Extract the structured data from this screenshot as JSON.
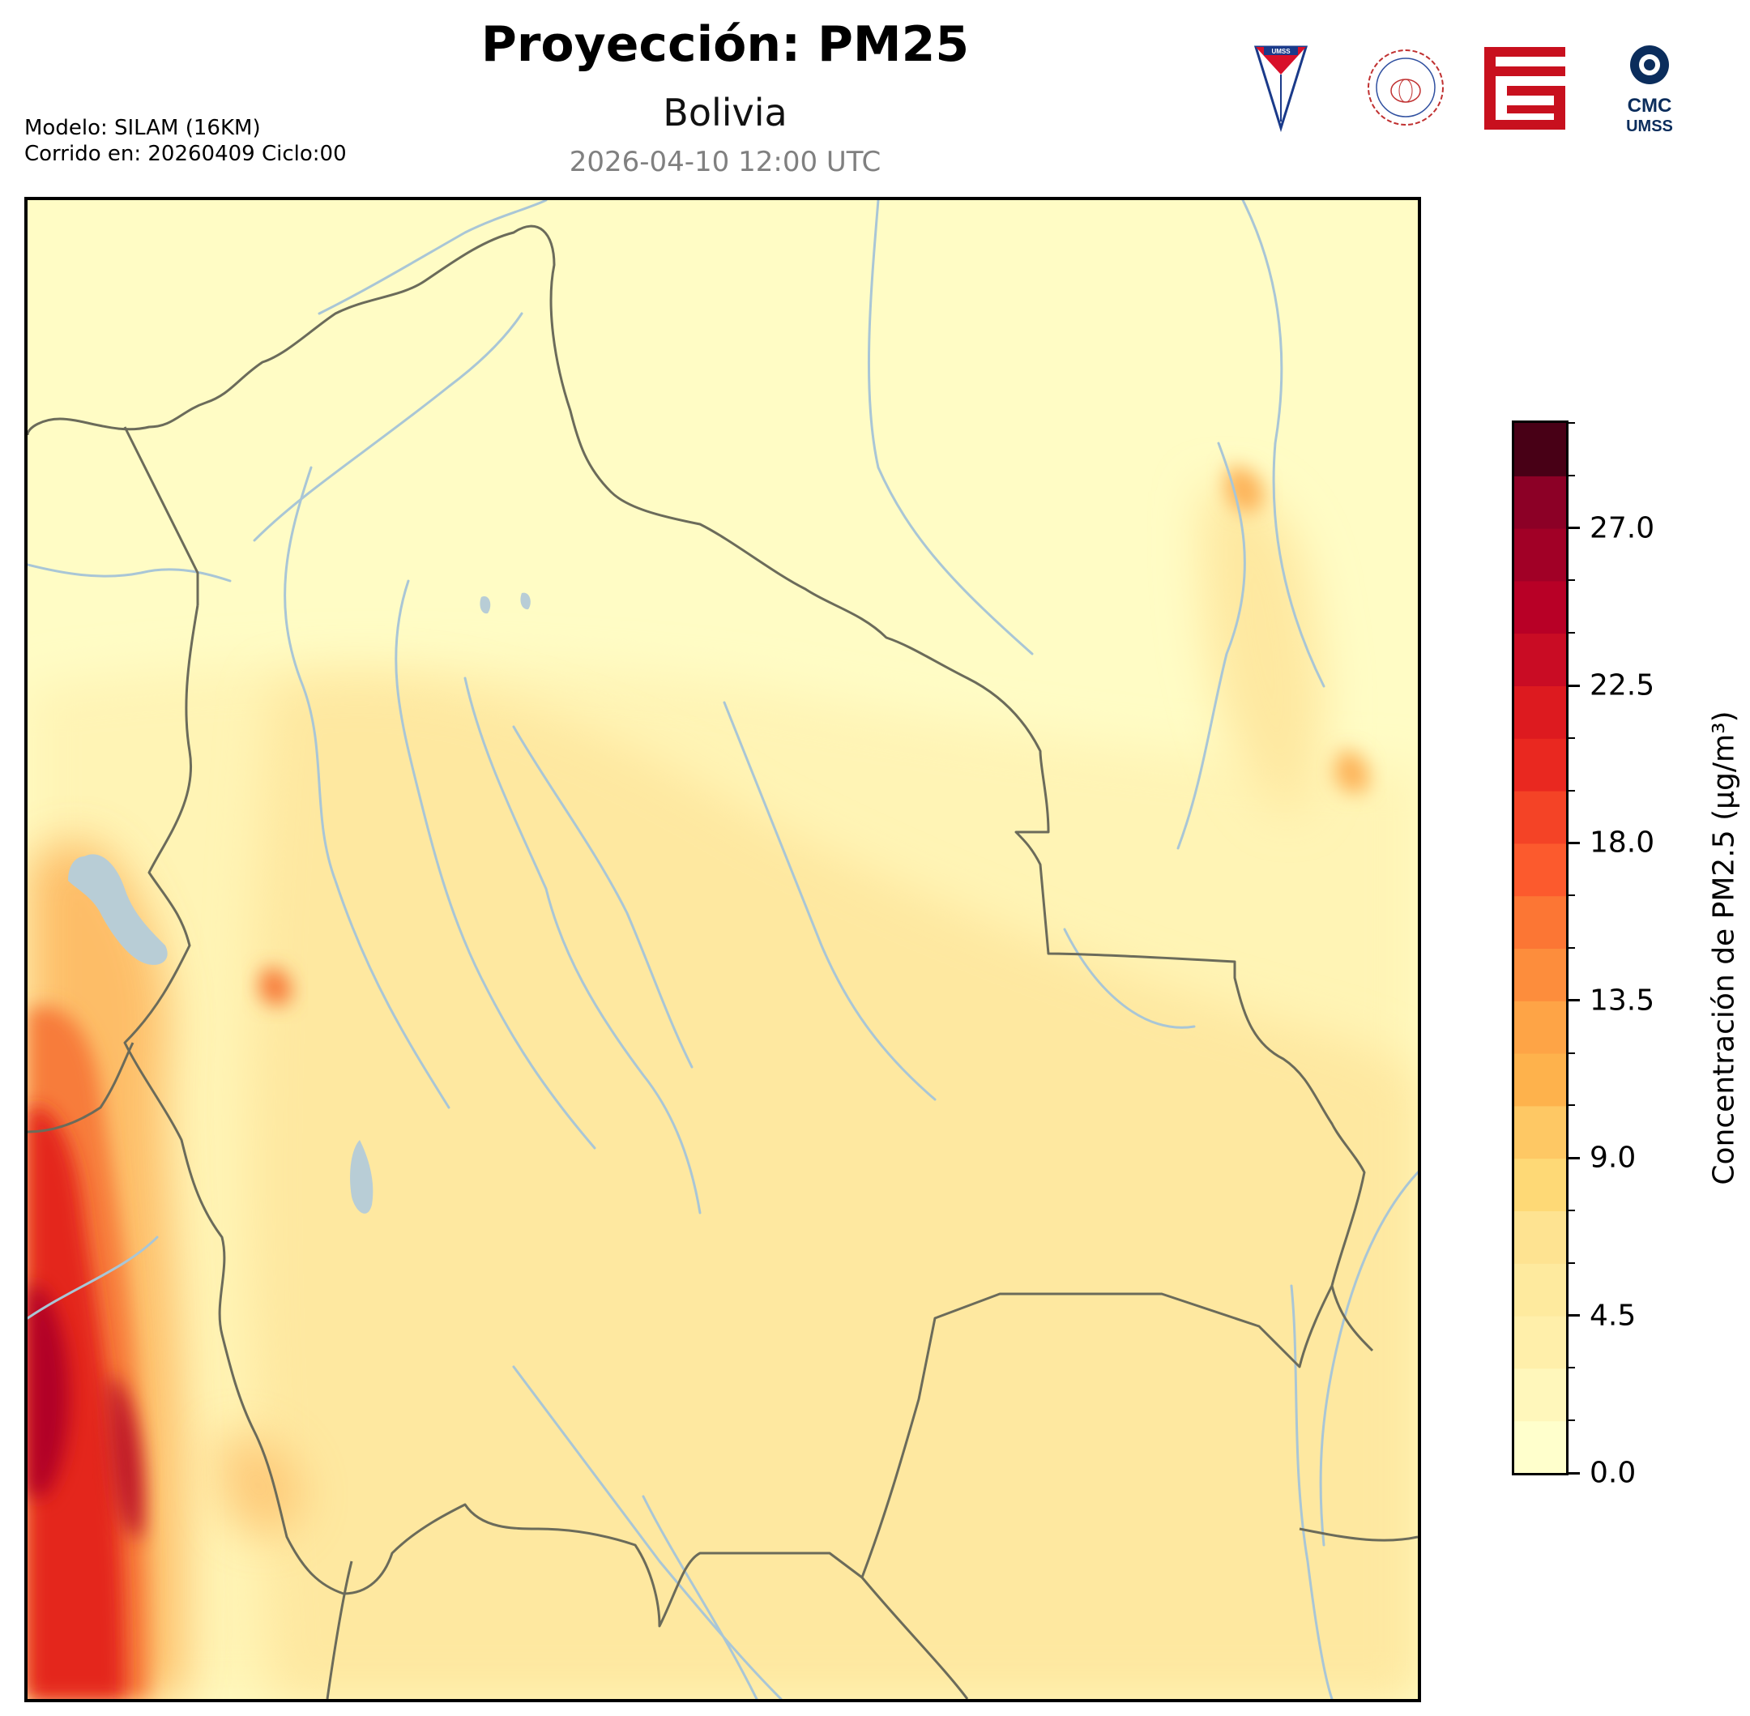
{
  "header": {
    "title": "Proyección: PM25",
    "subtitle": "Bolivia",
    "timestamp": "2026-04-10 12:00 UTC",
    "model_line": "Modelo: SILAM (16KM)",
    "run_line": "Corrido en: 20260409 Ciclo:00"
  },
  "logos": [
    {
      "name": "umss-shield",
      "text": "UMSS"
    },
    {
      "name": "departamento-fisica-seal"
    },
    {
      "name": "red-geometric-logo"
    },
    {
      "name": "cmc-umss-logo",
      "text_top": "CMC",
      "text_bottom": "UMSS"
    }
  ],
  "colorbar": {
    "title": "Concentración de PM2.5 (µg/m³)",
    "min": 0,
    "max": 30,
    "ticks": [
      "0.0",
      "4.5",
      "9.0",
      "13.5",
      "18.0",
      "22.5",
      "27.0"
    ],
    "tick_values": [
      0,
      4.5,
      9,
      13.5,
      18,
      22.5,
      27
    ],
    "level_step": 1.5,
    "colors": [
      "#ffffcc",
      "#fff7bb",
      "#ffefaa",
      "#feea9e",
      "#fee391",
      "#fed976",
      "#fec864",
      "#feb24c",
      "#fea446",
      "#fd8d3c",
      "#fc7634",
      "#fc5a2d",
      "#f44326",
      "#e92820",
      "#dd1a1f",
      "#c90c24",
      "#b80026",
      "#a10026",
      "#8c0026",
      "#72001f",
      "#56001a",
      "#480016"
    ],
    "colors_note_excluded": true
  },
  "map": {
    "colors": {
      "background": "#fffcc5",
      "light": "#fff4b5",
      "medium": "#fee8a0",
      "orange": "#fdb45a",
      "dark_orange": "#f77b3a",
      "red": "#e4261f",
      "dark_red": "#b10026",
      "border": "#6b6b5a",
      "river": "#a9c6d6",
      "lake": "#b8cdd6"
    }
  }
}
